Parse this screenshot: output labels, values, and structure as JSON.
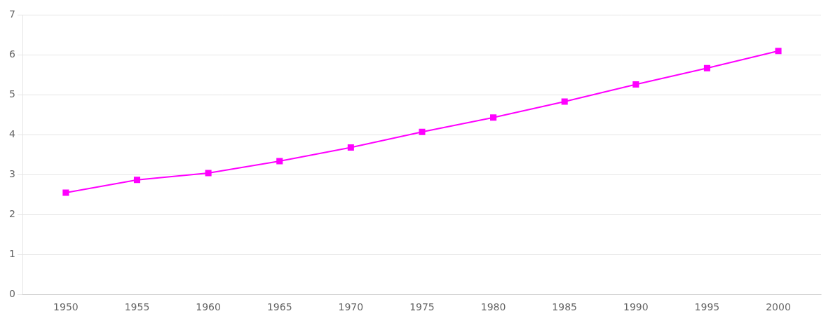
{
  "chart_data": {
    "type": "line",
    "x": [
      1950,
      1955,
      1960,
      1965,
      1970,
      1975,
      1980,
      1985,
      1990,
      1995,
      2000
    ],
    "values": [
      2.55,
      2.87,
      3.04,
      3.34,
      3.68,
      4.07,
      4.43,
      4.83,
      5.26,
      5.67,
      6.1
    ],
    "color": "#FF00FF",
    "marker": "square",
    "xlim": [
      1947,
      2003
    ],
    "xticks": [
      1950,
      1955,
      1960,
      1965,
      1970,
      1975,
      1980,
      1985,
      1990,
      1995,
      2000
    ],
    "ylim": [
      0,
      7
    ],
    "yticks": [
      0,
      1,
      2,
      3,
      4,
      5,
      6,
      7
    ],
    "grid": "y"
  }
}
